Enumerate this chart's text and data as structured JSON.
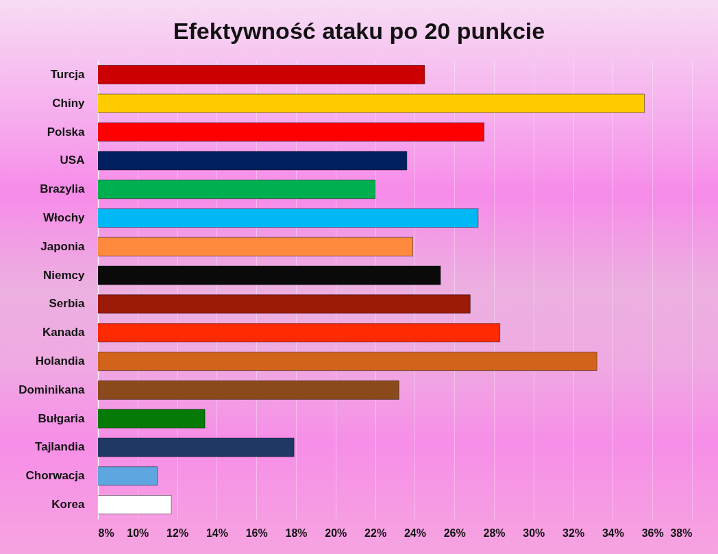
{
  "chart_data": {
    "type": "bar",
    "orientation": "horizontal",
    "title": "Efektywność ataku po 20 punkcie",
    "categories": [
      "Turcja",
      "Chiny",
      "Polska",
      "USA",
      "Brazylia",
      "Włochy",
      "Japonia",
      "Niemcy",
      "Serbia",
      "Kanada",
      "Holandia",
      "Dominikana",
      "Bułgaria",
      "Tajlandia",
      "Chorwacja",
      "Korea"
    ],
    "values": [
      24.5,
      35.6,
      27.5,
      23.6,
      22.0,
      27.2,
      23.9,
      25.3,
      26.8,
      28.3,
      33.2,
      23.2,
      13.4,
      17.9,
      11.0,
      11.7
    ],
    "colors": [
      "#cc0000",
      "#ffcc00",
      "#ff0000",
      "#002060",
      "#00b050",
      "#00b8f5",
      "#ff8a3d",
      "#0a0a0a",
      "#9c1a08",
      "#ff2a00",
      "#d2631a",
      "#8a4a1c",
      "#067a06",
      "#1f3864",
      "#5ea6e0",
      "#ffffff"
    ],
    "xlim": [
      8,
      38
    ],
    "xticks": [
      {
        "value": 8,
        "label": "8%"
      },
      {
        "value": 10,
        "label": "10%"
      },
      {
        "value": 12,
        "label": "12%"
      },
      {
        "value": 14,
        "label": "14%"
      },
      {
        "value": 16,
        "label": "16%"
      },
      {
        "value": 18,
        "label": "18%"
      },
      {
        "value": 20,
        "label": "20%"
      },
      {
        "value": 22,
        "label": "22%"
      },
      {
        "value": 24,
        "label": "24%"
      },
      {
        "value": 26,
        "label": "26%"
      },
      {
        "value": 28,
        "label": "28%"
      },
      {
        "value": 30,
        "label": "30%"
      },
      {
        "value": 32,
        "label": "32%"
      },
      {
        "value": 34,
        "label": "34%"
      },
      {
        "value": 36,
        "label": "36%"
      },
      {
        "value": 38,
        "label": "38%"
      }
    ],
    "grid": "x"
  }
}
